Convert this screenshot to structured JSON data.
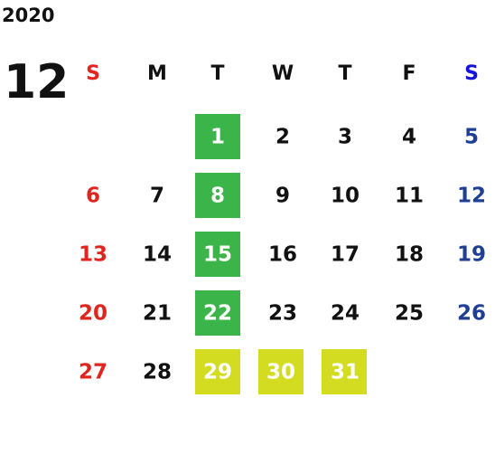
{
  "year": "2020",
  "month": "12",
  "weekdays": [
    "S",
    "M",
    "T",
    "W",
    "T",
    "F",
    "S"
  ],
  "weekday_colors": [
    "#e8231f",
    "#111111",
    "#111111",
    "#111111",
    "#111111",
    "#111111",
    "#1414d8"
  ],
  "day_colors": [
    "#e0251f",
    "#111111",
    "#111111",
    "#111111",
    "#111111",
    "#111111",
    "#1e3f94"
  ],
  "highlight_text_color": "#ffffff",
  "weeks": [
    [
      null,
      null,
      {
        "day": 1,
        "fill": "#3bb44a"
      },
      2,
      3,
      4,
      5
    ],
    [
      6,
      7,
      {
        "day": 8,
        "fill": "#3bb44a"
      },
      9,
      10,
      11,
      12
    ],
    [
      13,
      14,
      {
        "day": 15,
        "fill": "#3bb44a"
      },
      16,
      17,
      18,
      19
    ],
    [
      20,
      21,
      {
        "day": 22,
        "fill": "#3bb44a"
      },
      23,
      24,
      25,
      26
    ],
    [
      27,
      28,
      {
        "day": 29,
        "fill": "#d4dc22"
      },
      {
        "day": 30,
        "fill": "#d4dc22"
      },
      {
        "day": 31,
        "fill": "#d4dc22"
      },
      null,
      null
    ]
  ]
}
